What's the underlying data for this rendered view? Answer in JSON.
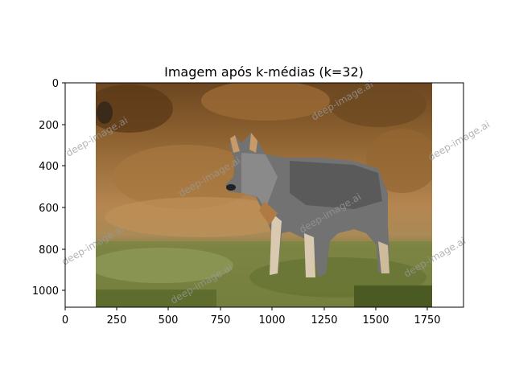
{
  "figure": {
    "title": "Imagem após k-médias (k=32)",
    "x_ticks": [
      "0",
      "250",
      "500",
      "750",
      "1000",
      "1250",
      "1500",
      "1750"
    ],
    "y_ticks": [
      "0",
      "200",
      "400",
      "600",
      "800",
      "1000"
    ],
    "watermark_text": "deep-image.ai",
    "image_subject": "grey wolf standing in grass, k-means color-quantized"
  },
  "colors": {
    "sky_brown": "#8a5a2a",
    "mid_tan": "#b5834e",
    "grass_green": "#6f7a3c",
    "wolf_grey": "#6e6e6e"
  }
}
